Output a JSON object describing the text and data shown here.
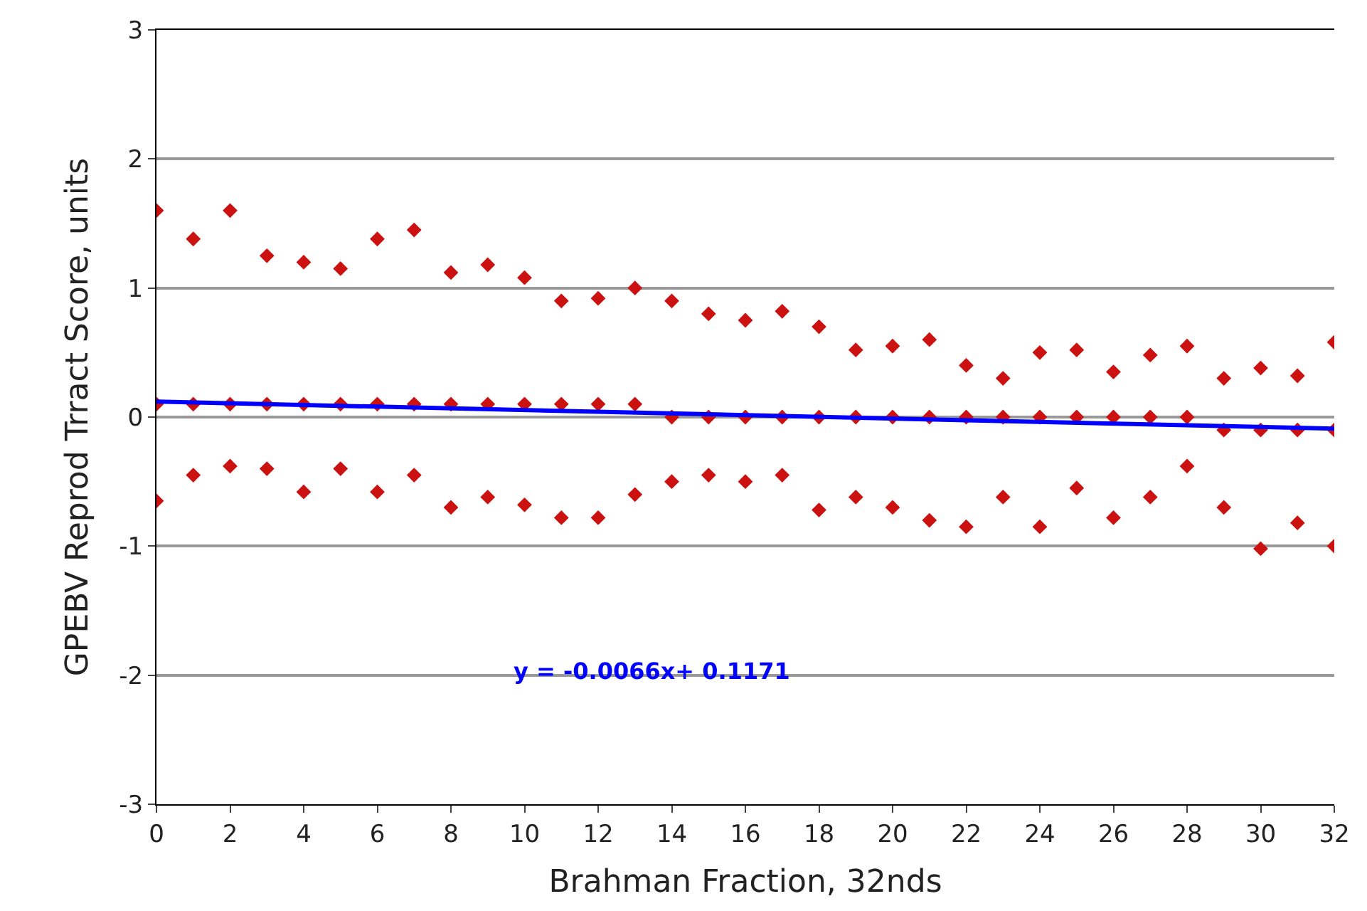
{
  "chart_data": {
    "type": "scatter",
    "xlabel": "Brahman Fraction, 32nds",
    "ylabel": "GPEBV Reprod Trract Score, units",
    "annotations": [
      "y = -0.0066x+ 0.1171"
    ],
    "xlim": [
      0,
      32
    ],
    "xticks": [
      0,
      2,
      4,
      6,
      8,
      10,
      12,
      14,
      16,
      18,
      20,
      22,
      24,
      26,
      28,
      30,
      32
    ],
    "ylim": [
      -3,
      3
    ],
    "yticks": [
      -3,
      -2,
      -1,
      0,
      1,
      2,
      3
    ],
    "grid": "y",
    "marker": "diamond",
    "series": [
      {
        "color": "#cc1111",
        "x": [
          0,
          0,
          0,
          1,
          1,
          1,
          2,
          2,
          2,
          3,
          3,
          3,
          4,
          4,
          4,
          5,
          5,
          5,
          6,
          6,
          6,
          7,
          7,
          7,
          8,
          8,
          8,
          9,
          9,
          9,
          10,
          10,
          10,
          11,
          11,
          11,
          12,
          12,
          12,
          13,
          13,
          13,
          14,
          14,
          14,
          15,
          15,
          15,
          16,
          16,
          16,
          17,
          17,
          17,
          18,
          18,
          18,
          19,
          19,
          19,
          20,
          20,
          20,
          21,
          21,
          21,
          22,
          22,
          22,
          23,
          23,
          23,
          24,
          24,
          24,
          25,
          25,
          25,
          26,
          26,
          26,
          27,
          27,
          27,
          28,
          28,
          28,
          29,
          29,
          29,
          30,
          30,
          30,
          31,
          31,
          31,
          32,
          32,
          32
        ],
        "values": [
          1.6,
          0.1,
          -0.65,
          1.38,
          0.1,
          -0.45,
          1.6,
          0.1,
          -0.38,
          1.25,
          0.1,
          -0.4,
          1.2,
          0.1,
          -0.58,
          1.15,
          0.1,
          -0.4,
          1.38,
          0.1,
          -0.58,
          1.45,
          0.1,
          -0.45,
          1.12,
          0.1,
          -0.7,
          1.18,
          0.1,
          -0.62,
          1.08,
          0.1,
          -0.68,
          0.9,
          0.1,
          -0.78,
          0.92,
          0.1,
          -0.78,
          1.0,
          0.1,
          -0.6,
          0.9,
          0.0,
          -0.5,
          0.8,
          0.0,
          -0.45,
          0.75,
          0.0,
          -0.5,
          0.82,
          0.0,
          -0.45,
          0.7,
          0.0,
          -0.72,
          0.52,
          0.0,
          -0.62,
          0.55,
          0.0,
          -0.7,
          0.6,
          0.0,
          -0.8,
          0.4,
          0.0,
          -0.85,
          0.3,
          0.0,
          -0.62,
          0.5,
          0.0,
          -0.85,
          0.52,
          0.0,
          -0.55,
          0.35,
          0.0,
          -0.78,
          0.48,
          0.0,
          -0.62,
          0.55,
          0.0,
          -0.38,
          0.3,
          -0.1,
          -0.7,
          0.38,
          -0.1,
          -1.02,
          0.32,
          -0.1,
          -0.82,
          0.58,
          -0.1,
          -1.0
        ]
      },
      {
        "type": "line",
        "marker": "none",
        "color": "#0000ff",
        "x": [
          0,
          32
        ],
        "values": [
          0.12,
          -0.09
        ]
      }
    ]
  }
}
